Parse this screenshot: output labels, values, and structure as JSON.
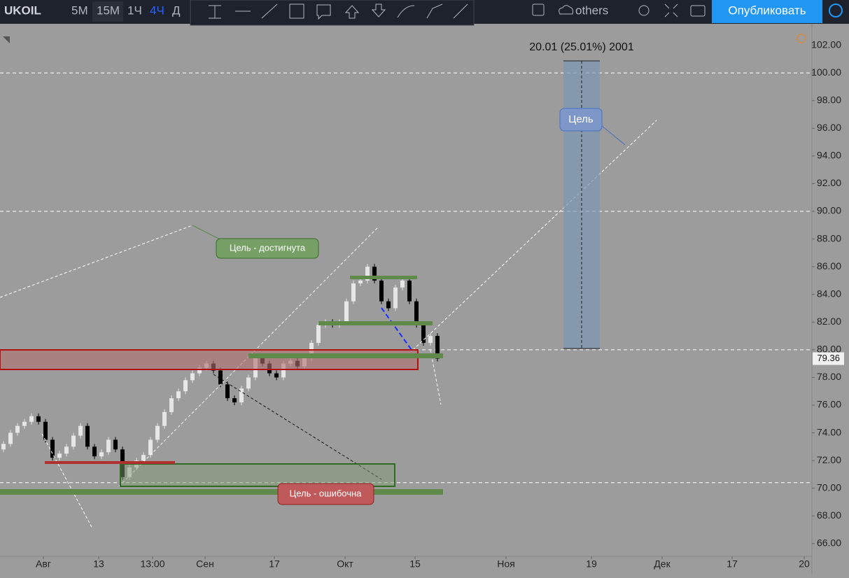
{
  "toolbar": {
    "symbol": "UKOIL",
    "intervals": [
      "5M",
      "15M",
      "1Ч",
      "4Ч",
      "Д"
    ],
    "layout_name": "others",
    "publish": "Опубликовать"
  },
  "chart_data": {
    "type": "candlestick",
    "open": [
      72.8,
      73.2,
      74,
      74.5,
      74.8,
      75.2,
      74.8,
      73.5,
      72.2,
      72.5,
      73,
      73.8,
      74.5,
      73,
      72.3,
      72.6,
      73.5,
      72.8,
      70.8,
      71.5,
      72,
      72.4,
      73.5,
      74.5,
      75.5,
      76.5,
      77,
      77.8,
      78.3,
      78.7,
      79,
      78.5,
      77.5,
      76.5,
      76.2,
      77.2,
      78,
      79.5,
      79,
      78.3,
      78,
      79,
      79.2,
      78.8,
      79.4,
      80.5,
      81.8,
      82,
      81.8,
      82,
      83.5,
      84.8,
      85,
      86,
      85,
      83.5,
      83,
      84.5,
      85,
      83.5,
      81.8,
      80.5,
      81
    ],
    "close": [
      73.2,
      74,
      74.5,
      74.8,
      75.2,
      74.8,
      73.5,
      72.2,
      72.5,
      73,
      73.8,
      74.5,
      73,
      72.3,
      72.6,
      73.5,
      72.8,
      70.8,
      71.5,
      72,
      72.4,
      73.5,
      74.5,
      75.5,
      76.5,
      77,
      77.8,
      78.3,
      78.7,
      79,
      78.5,
      77.5,
      76.5,
      76.2,
      77.2,
      78,
      79.5,
      79,
      78.3,
      78,
      79,
      79.2,
      78.8,
      79.4,
      80.5,
      81.8,
      82,
      81.8,
      82,
      83.5,
      84.8,
      85,
      86,
      85,
      83.5,
      83,
      84.5,
      85,
      83.5,
      81.8,
      80.5,
      81,
      79.36
    ],
    "up_color": "#e6e6e6",
    "down_color": "#000000",
    "xlim": [
      0,
      116
    ],
    "xticks": [
      {
        "value": 6.2,
        "label": "Авг"
      },
      {
        "value": 14.1,
        "label": "13"
      },
      {
        "value": 21.8,
        "label": "13:00"
      },
      {
        "value": 29.3,
        "label": "Сен"
      },
      {
        "value": 39.2,
        "label": "17"
      },
      {
        "value": 49.3,
        "label": "Окт"
      },
      {
        "value": 59.3,
        "label": "15"
      },
      {
        "value": 72.3,
        "label": "Ноя"
      },
      {
        "value": 84.5,
        "label": "19"
      },
      {
        "value": 94.6,
        "label": "Дек"
      },
      {
        "value": 104.6,
        "label": "17"
      },
      {
        "value": 114.9,
        "label": "20"
      }
    ],
    "ylim": [
      65.08,
      103.55
    ],
    "yticks": [
      {
        "value": 66,
        "label": "66.00"
      },
      {
        "value": 68,
        "label": "68.00"
      },
      {
        "value": 70,
        "label": "70.00"
      },
      {
        "value": 72,
        "label": "72.00"
      },
      {
        "value": 74,
        "label": "74.00"
      },
      {
        "value": 76,
        "label": "76.00"
      },
      {
        "value": 78,
        "label": "78.00"
      },
      {
        "value": 80,
        "label": "80.00"
      },
      {
        "value": 82,
        "label": "82.00"
      },
      {
        "value": 84,
        "label": "84.00"
      },
      {
        "value": 86,
        "label": "86.00"
      },
      {
        "value": 88,
        "label": "88.00"
      },
      {
        "value": 90,
        "label": "90.00"
      },
      {
        "value": 92,
        "label": "92.00"
      },
      {
        "value": 94,
        "label": "94.00"
      },
      {
        "value": 96,
        "label": "96.00"
      },
      {
        "value": 98,
        "label": "98.00"
      },
      {
        "value": 100,
        "label": "100.00"
      },
      {
        "value": 102,
        "label": "102.00"
      }
    ],
    "levels": [
      100,
      90,
      80,
      70.4
    ],
    "last_price": 79.36,
    "annotations": {
      "target_hit": "Цель - достигнута",
      "target_wrong": "Цель - ошибочна",
      "target": "Цель",
      "measure": "20.01 (25.01%) 2001"
    }
  }
}
